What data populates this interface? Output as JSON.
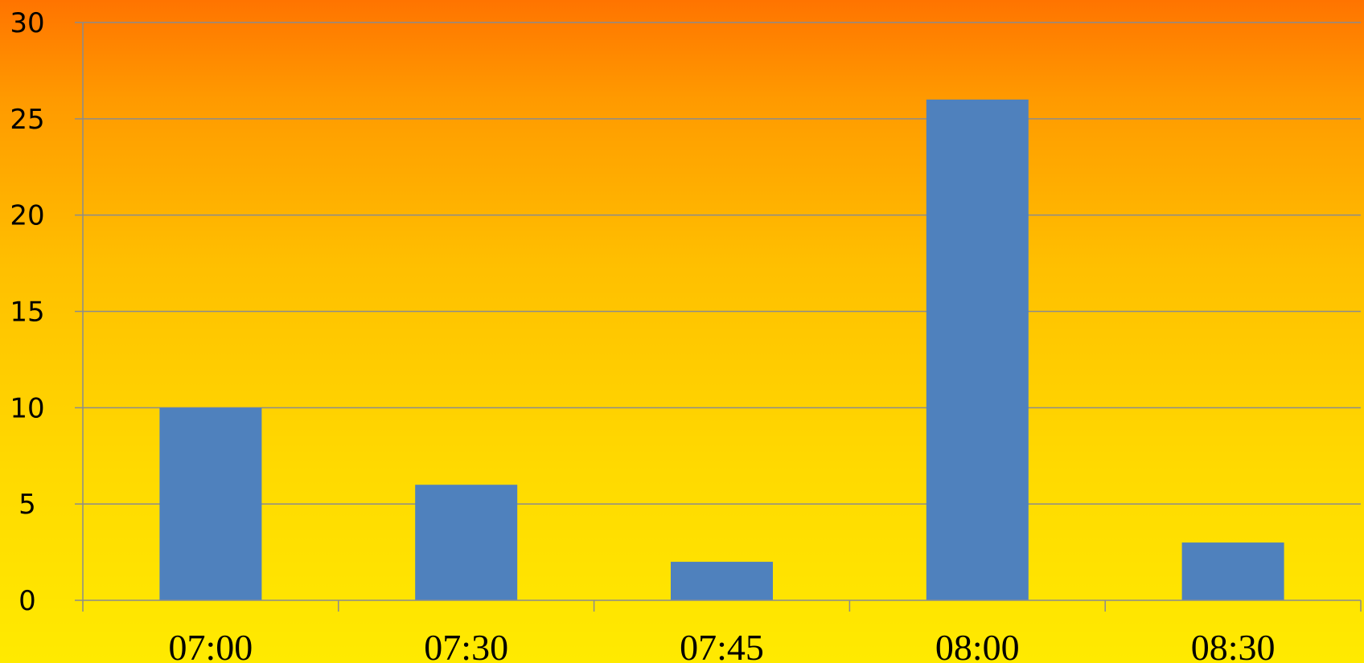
{
  "chart_data": {
    "type": "bar",
    "title": "",
    "xlabel": "",
    "ylabel": "",
    "categories": [
      "07:00",
      "07:30",
      "07:45",
      "08:00",
      "08:30"
    ],
    "series": [
      {
        "values": [
          10,
          6,
          2,
          26,
          3
        ]
      }
    ],
    "ylim": [
      0,
      30
    ],
    "yticks": [
      0,
      5,
      10,
      15,
      20,
      25,
      30
    ],
    "grid": true,
    "legend": "none",
    "colors": {
      "bar": "#4f81bd",
      "grid": "#8c8c8c",
      "background_top": "#ff7400",
      "background_bottom": "#ffea00"
    }
  }
}
